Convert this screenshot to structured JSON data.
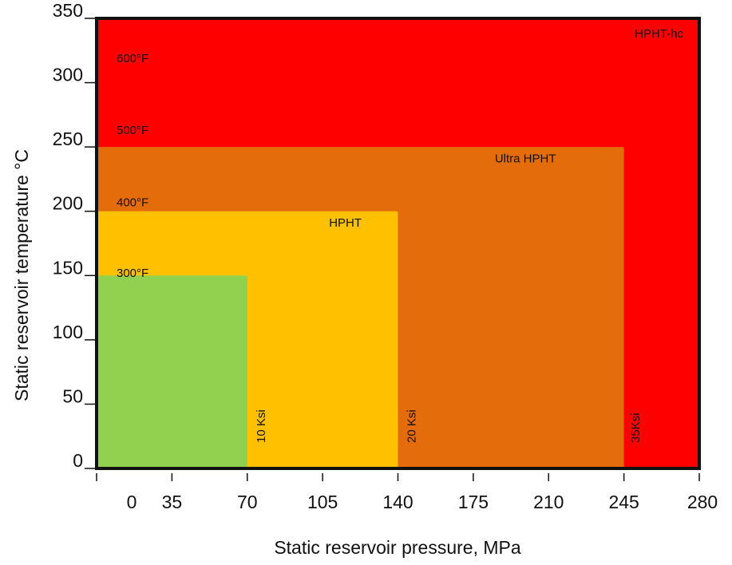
{
  "chart_data": {
    "type": "area",
    "xlabel": "Static reservoir pressure, MPa",
    "ylabel": "Static reservoir temperature °C",
    "xlim": [
      0,
      280
    ],
    "ylim": [
      0,
      350
    ],
    "x_ticks": [
      0,
      35,
      70,
      105,
      140,
      175,
      210,
      245,
      280
    ],
    "y_ticks": [
      0,
      50,
      100,
      150,
      200,
      250,
      300,
      350
    ],
    "regions": [
      {
        "name": "HPHT-hc",
        "x_max": 280,
        "y_max": 350,
        "color": "#ff0000"
      },
      {
        "name": "Ultra HPHT",
        "x_max": 245,
        "y_max": 250,
        "color": "#e46c0a"
      },
      {
        "name": "HPHT",
        "x_max": 140,
        "y_max": 200,
        "color": "#ffc000"
      },
      {
        "name": "",
        "x_max": 70,
        "y_max": 150,
        "color": "#92d050"
      }
    ],
    "region_labels": [
      {
        "text": "HPHT-hc",
        "x": 250,
        "y": 335
      },
      {
        "text": "Ultra HPHT",
        "x": 185,
        "y": 238
      },
      {
        "text": "HPHT",
        "x": 108,
        "y": 188
      }
    ],
    "temperature_labels": [
      {
        "text": "600°F",
        "y": 316
      },
      {
        "text": "500°F",
        "y": 260
      },
      {
        "text": "400°F",
        "y": 204
      },
      {
        "text": "300°F",
        "y": 149
      }
    ],
    "pressure_labels": [
      {
        "text": "10 Ksi",
        "x": 73
      },
      {
        "text": "20 Ksi",
        "x": 143
      },
      {
        "text": "35Ksi",
        "x": 247
      }
    ],
    "axis_offsets": {
      "x_tick_label_shift": -1,
      "y_tick_label_shift": -1
    },
    "frame_color": "#111111"
  }
}
